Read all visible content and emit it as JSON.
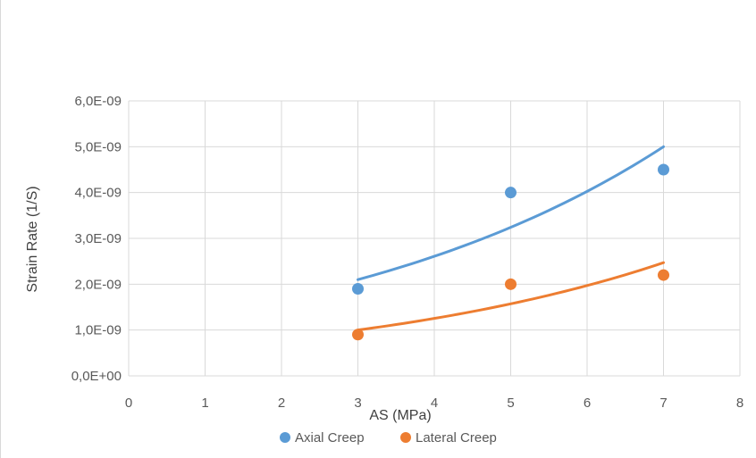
{
  "chart_data": {
    "type": "scatter",
    "title": "",
    "xlabel": "AS (MPa)",
    "ylabel": "Strain Rate (1/S)",
    "xlim": [
      0,
      8
    ],
    "ylim": [
      0,
      6e-09
    ],
    "x_ticks": [
      "0",
      "1",
      "2",
      "3",
      "4",
      "5",
      "6",
      "7",
      "8"
    ],
    "y_ticks": [
      "0,0E+00",
      "1,0E-09",
      "2,0E-09",
      "3,0E-09",
      "4,0E-09",
      "5,0E-09",
      "6,0E-09"
    ],
    "grid": true,
    "legend_position": "bottom",
    "series": [
      {
        "name": "Axial Creep",
        "color": "#5b9bd5",
        "x": [
          3,
          5,
          7
        ],
        "y": [
          1.9e-09,
          4e-09,
          4.5e-09
        ],
        "trendline": {
          "type": "exponential",
          "x": [
            3,
            7
          ],
          "y": [
            2.1e-09,
            5e-09
          ]
        }
      },
      {
        "name": "Lateral Creep",
        "color": "#ed7d31",
        "x": [
          3,
          5,
          7
        ],
        "y": [
          9e-10,
          2e-09,
          2.2e-09
        ],
        "trendline": {
          "type": "exponential",
          "x": [
            3,
            7
          ],
          "y": [
            1e-09,
            2.47e-09
          ]
        }
      }
    ],
    "grid_color": "#d9d9d9"
  }
}
